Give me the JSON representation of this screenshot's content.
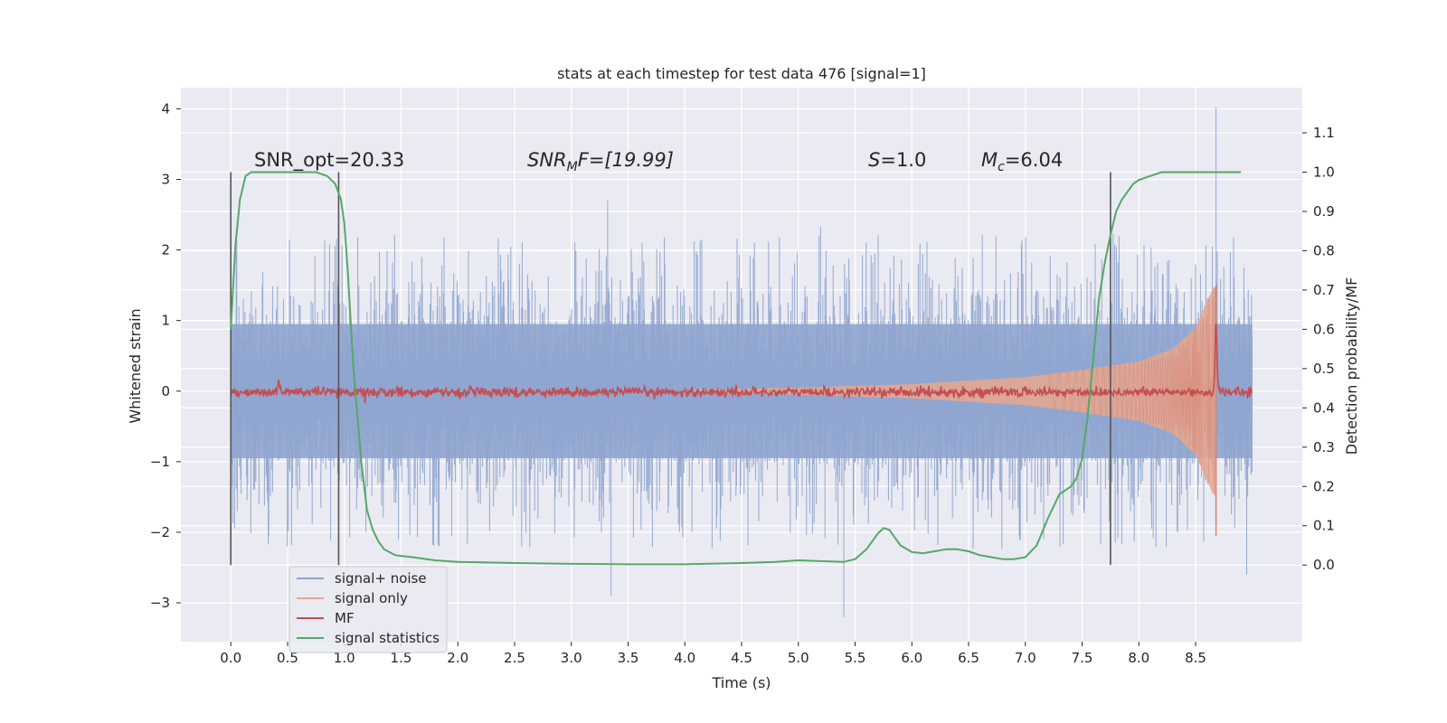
{
  "chart_data": {
    "type": "line",
    "title": "stats at each timestep for test data 476 [signal=1]",
    "xlabel": "Time (s)",
    "ylabel": "Whitened strain",
    "y2label": "Detection probability/MF",
    "xlim": [
      -0.44,
      9.44
    ],
    "ylim": [
      -3.55,
      4.3
    ],
    "y2lim": [
      -0.195,
      1.215
    ],
    "xticks": [
      0.0,
      0.5,
      1.0,
      1.5,
      2.0,
      2.5,
      3.0,
      3.5,
      4.0,
      4.5,
      5.0,
      5.5,
      6.0,
      6.5,
      7.0,
      7.5,
      8.0,
      8.5
    ],
    "xtick_labels": [
      "0.0",
      "0.5",
      "1.0",
      "1.5",
      "2.0",
      "2.5",
      "3.0",
      "3.5",
      "4.0",
      "4.5",
      "5.0",
      "5.5",
      "6.0",
      "6.5",
      "7.0",
      "7.5",
      "8.0",
      "8.5"
    ],
    "yticks": [
      -3,
      -2,
      -1,
      0,
      1,
      2,
      3,
      4
    ],
    "ytick_labels": [
      "−3",
      "−2",
      "−1",
      "0",
      "1",
      "2",
      "3",
      "4"
    ],
    "y2ticks": [
      0.0,
      0.1,
      0.2,
      0.3,
      0.4,
      0.5,
      0.6,
      0.7,
      0.8,
      0.9,
      1.0,
      1.1
    ],
    "y2tick_labels": [
      "0.0",
      "0.1",
      "0.2",
      "0.3",
      "0.4",
      "0.5",
      "0.6",
      "0.7",
      "0.8",
      "0.9",
      "1.0",
      "1.1"
    ],
    "grid": true,
    "legend_position": "lower-left",
    "annotations": {
      "snr_opt": "SNR_opt=20.33",
      "snr_mf_main": "SNR",
      "snr_mf_sub": "M",
      "snr_mf_rest": "F=[19.99]",
      "s_main": "S",
      "s_rest": "=1.0",
      "mc_main": "M",
      "mc_sub": "c",
      "mc_rest": "=6.04"
    },
    "vertical_markers_x": [
      0.0,
      0.95,
      7.75
    ],
    "series": [
      {
        "name": "signal+ noise",
        "color": "#8fa5cf",
        "axis": "left",
        "x_range": [
          0.0,
          9.0
        ],
        "envelope": {
          "typical_peak": 1.6,
          "max_peaks": [
            [
              3.32,
              2.7
            ],
            [
              8.68,
              4.02
            ],
            [
              5.4,
              -3.2
            ],
            [
              3.35,
              -2.9
            ],
            [
              8.95,
              -2.6
            ]
          ]
        }
      },
      {
        "name": "signal only",
        "color": "#e8a78f",
        "axis": "left",
        "x_range": [
          4.0,
          8.68
        ],
        "amplitude": {
          "t": [
            4.0,
            5.0,
            6.0,
            7.0,
            7.5,
            8.0,
            8.3,
            8.5,
            8.65,
            8.68
          ],
          "a": [
            0.02,
            0.05,
            0.1,
            0.2,
            0.3,
            0.42,
            0.6,
            0.9,
            1.45,
            1.5
          ]
        }
      },
      {
        "name": "MF",
        "color": "#c44e52",
        "axis": "right",
        "baseline": 0.44,
        "peaks": [
          [
            0.42,
            0.47
          ],
          [
            8.68,
            0.62
          ]
        ]
      },
      {
        "name": "signal statistics",
        "color": "#55a868",
        "axis": "right",
        "x": [
          0.0,
          0.04,
          0.08,
          0.13,
          0.18,
          0.25,
          0.4,
          0.6,
          0.75,
          0.85,
          0.92,
          0.97,
          1.0,
          1.03,
          1.08,
          1.15,
          1.2,
          1.25,
          1.3,
          1.35,
          1.45,
          1.6,
          1.8,
          2.0,
          2.5,
          3.0,
          3.5,
          4.0,
          4.5,
          4.8,
          5.0,
          5.2,
          5.4,
          5.5,
          5.6,
          5.7,
          5.75,
          5.8,
          5.85,
          5.9,
          6.0,
          6.1,
          6.2,
          6.3,
          6.4,
          6.5,
          6.6,
          6.8,
          6.9,
          7.0,
          7.1,
          7.2,
          7.3,
          7.4,
          7.45,
          7.5,
          7.55,
          7.6,
          7.65,
          7.7,
          7.75,
          7.8,
          7.85,
          7.9,
          7.95,
          8.0,
          8.1,
          8.2,
          8.3,
          8.5,
          8.7,
          8.8,
          8.9,
          8.9
        ],
        "y": [
          0.6,
          0.81,
          0.93,
          0.99,
          1.0,
          1.0,
          1.0,
          1.0,
          1.0,
          0.99,
          0.97,
          0.93,
          0.87,
          0.75,
          0.5,
          0.26,
          0.14,
          0.09,
          0.06,
          0.04,
          0.025,
          0.02,
          0.012,
          0.008,
          0.005,
          0.003,
          0.002,
          0.002,
          0.005,
          0.008,
          0.012,
          0.01,
          0.008,
          0.015,
          0.04,
          0.08,
          0.094,
          0.09,
          0.07,
          0.05,
          0.033,
          0.03,
          0.035,
          0.04,
          0.04,
          0.035,
          0.025,
          0.015,
          0.015,
          0.02,
          0.05,
          0.12,
          0.18,
          0.2,
          0.22,
          0.27,
          0.38,
          0.53,
          0.68,
          0.77,
          0.84,
          0.9,
          0.93,
          0.95,
          0.97,
          0.98,
          0.99,
          1.0,
          1.0,
          1.0,
          1.0,
          1.0,
          1.0,
          1.0
        ]
      }
    ]
  }
}
